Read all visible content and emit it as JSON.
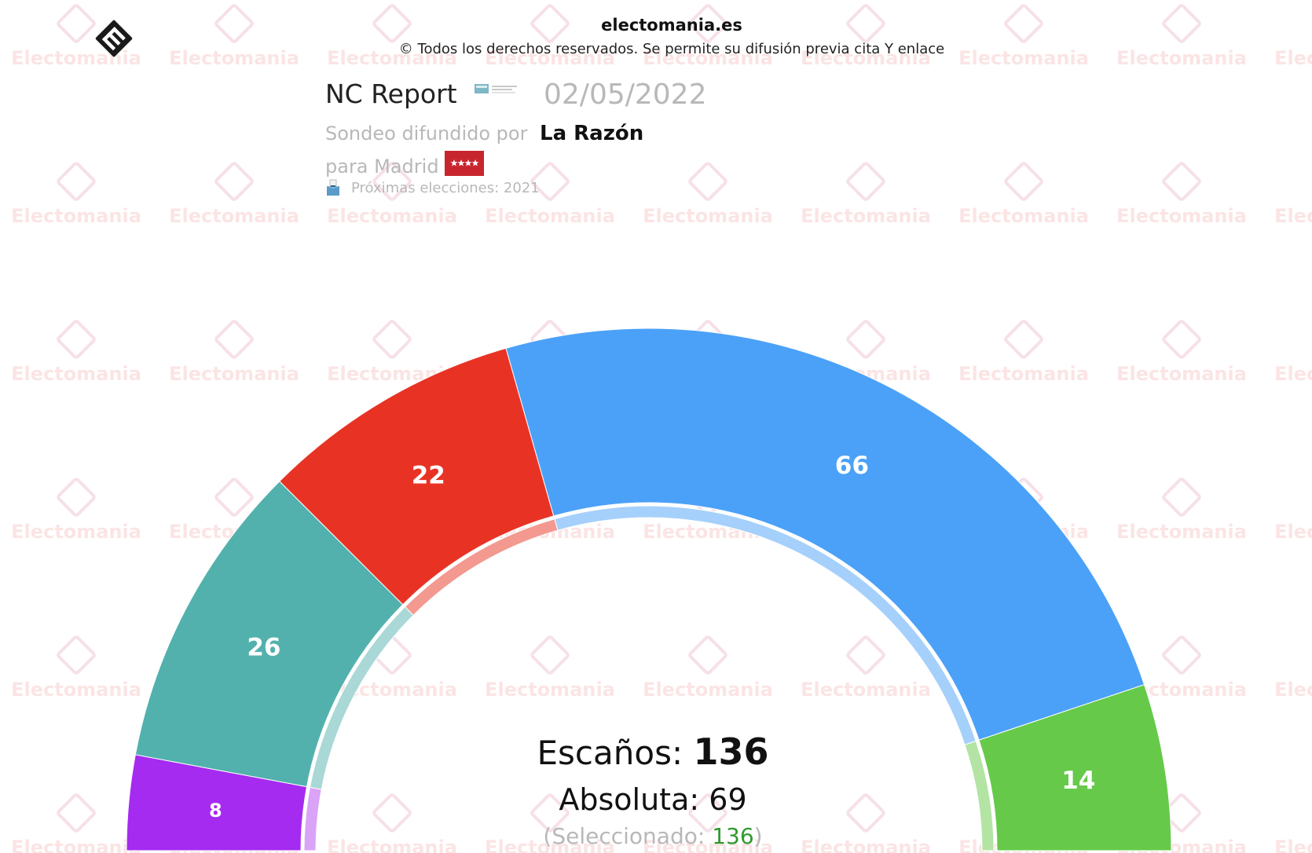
{
  "header": {
    "site_name": "electomania.es",
    "copyright": "© Todos los derechos reservados. Se permite su difusión previa cita Y enlace",
    "pollster": "NC Report",
    "date": "02/05/2022",
    "published_by_label": "Sondeo difundido por",
    "media": "La Razón",
    "region_label": "para Madrid",
    "next_elections": "Próximas elecciones: 2021"
  },
  "watermark_text": "Electomania",
  "chart_data": {
    "type": "parliament-hemicycle",
    "total_seats": 136,
    "majority": 69,
    "selected": 136,
    "series": [
      {
        "seats": 8,
        "color": "#a52bf0",
        "inner_color": "#d9a3f7"
      },
      {
        "seats": 26,
        "color": "#52b1ad",
        "inner_color": "#a9d8d6"
      },
      {
        "seats": 22,
        "color": "#e83324",
        "inner_color": "#f39990"
      },
      {
        "seats": 66,
        "color": "#4ba1f7",
        "inner_color": "#a5d0fb"
      },
      {
        "seats": 14,
        "color": "#66c94a",
        "inner_color": "#b3e4a4"
      }
    ]
  },
  "summary": {
    "seats_label": "Escaños:",
    "seats_value": "136",
    "majority_label": "Absoluta:",
    "majority_value": "69",
    "selected_open": "(Seleccionado:",
    "selected_value": "136",
    "selected_close": ")"
  }
}
